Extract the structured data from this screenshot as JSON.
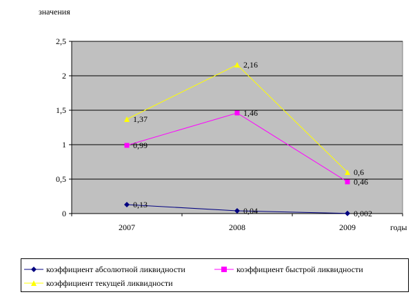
{
  "chart_data": {
    "type": "line",
    "ylabel": "значения",
    "xlabel": "годы",
    "categories": [
      "2007",
      "2008",
      "2009"
    ],
    "ylim": [
      0,
      2.5
    ],
    "yticks": [
      "0",
      "0,5",
      "1",
      "1,5",
      "2",
      "2,5"
    ],
    "ytick_values": [
      0,
      0.5,
      1,
      1.5,
      2,
      2.5
    ],
    "grid": true,
    "plot_background": "#c0c0c0",
    "legend_position": "bottom",
    "series": [
      {
        "name": "коэффициент абсолютной ликвидности",
        "values": [
          0.13,
          0.04,
          0.002
        ],
        "labels": [
          "0,13",
          "0,04",
          "0,002"
        ],
        "color": "#000080",
        "marker": "diamond"
      },
      {
        "name": "коэффициент быстрой ликвидности",
        "values": [
          0.99,
          1.46,
          0.46
        ],
        "labels": [
          "0,99",
          "1,46",
          "0,46"
        ],
        "color": "#ff00ff",
        "marker": "square"
      },
      {
        "name": "коэффициент текущей ликвидности",
        "values": [
          1.37,
          2.16,
          0.6
        ],
        "labels": [
          "1,37",
          "2,16",
          "0,6"
        ],
        "color": "#ffff00",
        "marker": "triangle"
      }
    ]
  }
}
